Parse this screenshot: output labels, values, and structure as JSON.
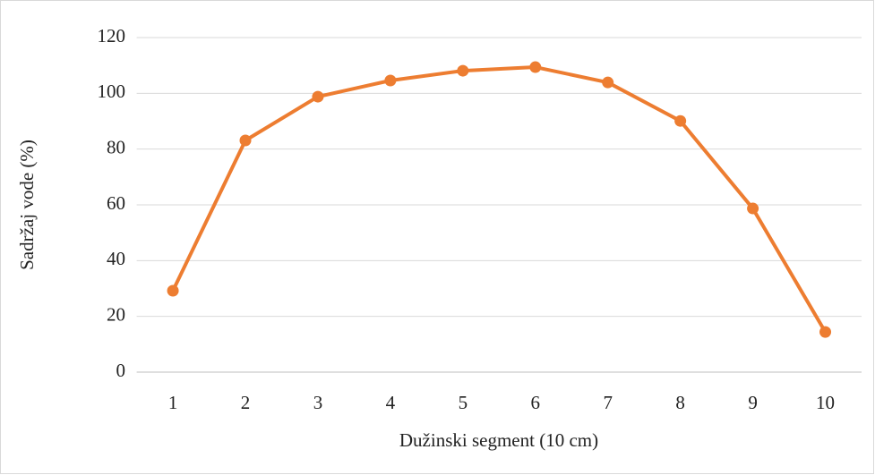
{
  "chart_data": {
    "type": "line",
    "categories": [
      "1",
      "2",
      "3",
      "4",
      "5",
      "6",
      "7",
      "8",
      "9",
      "10"
    ],
    "series": [
      {
        "name": "Sadržaj vode",
        "color": "#ed7d31",
        "values": [
          29.2,
          83.1,
          98.8,
          104.6,
          108.1,
          109.4,
          103.9,
          90.1,
          58.7,
          14.4
        ]
      }
    ],
    "xlabel": "Dužinski segment (10 cm)",
    "ylabel": "Sadržaj vode (%)",
    "ylim": [
      0,
      120
    ],
    "yticks": [
      0,
      20,
      40,
      60,
      80,
      100,
      120
    ],
    "grid": true
  }
}
